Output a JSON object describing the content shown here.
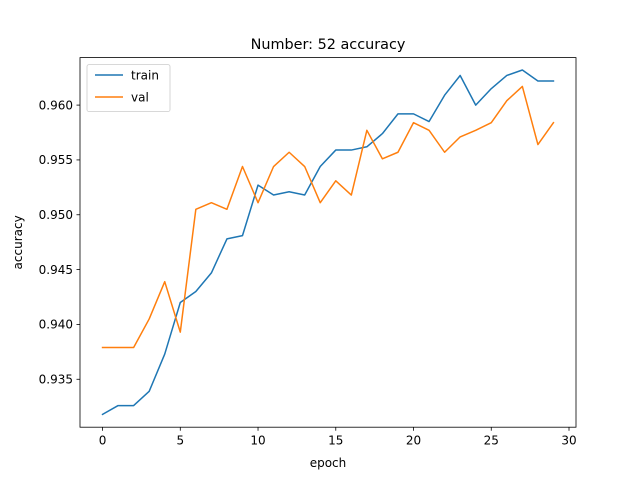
{
  "chart_data": {
    "type": "line",
    "title": "Number: 52 accuracy",
    "xlabel": "epoch",
    "ylabel": "accuracy",
    "xlim": [
      -1.45,
      30.45
    ],
    "ylim": [
      0.93063,
      0.96433
    ],
    "xticks": [
      0,
      5,
      10,
      15,
      20,
      25,
      30
    ],
    "yticks": [
      0.935,
      0.94,
      0.945,
      0.95,
      0.955,
      0.96
    ],
    "ytick_labels": [
      "0.935",
      "0.940",
      "0.945",
      "0.950",
      "0.955",
      "0.960"
    ],
    "grid": false,
    "legend_position": "upper left",
    "x": [
      0,
      1,
      2,
      3,
      4,
      5,
      6,
      7,
      8,
      9,
      10,
      11,
      12,
      13,
      14,
      15,
      16,
      17,
      18,
      19,
      20,
      21,
      22,
      23,
      24,
      25,
      26,
      27,
      28,
      29
    ],
    "series": [
      {
        "name": "train",
        "color": "#1f77b4",
        "values": [
          0.9318,
          0.9326,
          0.9326,
          0.9339,
          0.9373,
          0.942,
          0.943,
          0.9447,
          0.9478,
          0.9481,
          0.9527,
          0.9518,
          0.9521,
          0.9518,
          0.9544,
          0.9559,
          0.9559,
          0.9562,
          0.9574,
          0.9592,
          0.9592,
          0.9585,
          0.9609,
          0.9627,
          0.96,
          0.9615,
          0.9627,
          0.9632,
          0.9622,
          0.9622
        ]
      },
      {
        "name": "val",
        "color": "#ff7f0e",
        "values": [
          0.9379,
          0.9379,
          0.9379,
          0.9405,
          0.9439,
          0.9393,
          0.9505,
          0.9511,
          0.9505,
          0.9544,
          0.9511,
          0.9544,
          0.9557,
          0.9544,
          0.9511,
          0.9531,
          0.9518,
          0.9577,
          0.9551,
          0.9557,
          0.9584,
          0.9577,
          0.9557,
          0.9571,
          0.9577,
          0.9584,
          0.9604,
          0.9617,
          0.9564,
          0.9584
        ]
      }
    ]
  }
}
